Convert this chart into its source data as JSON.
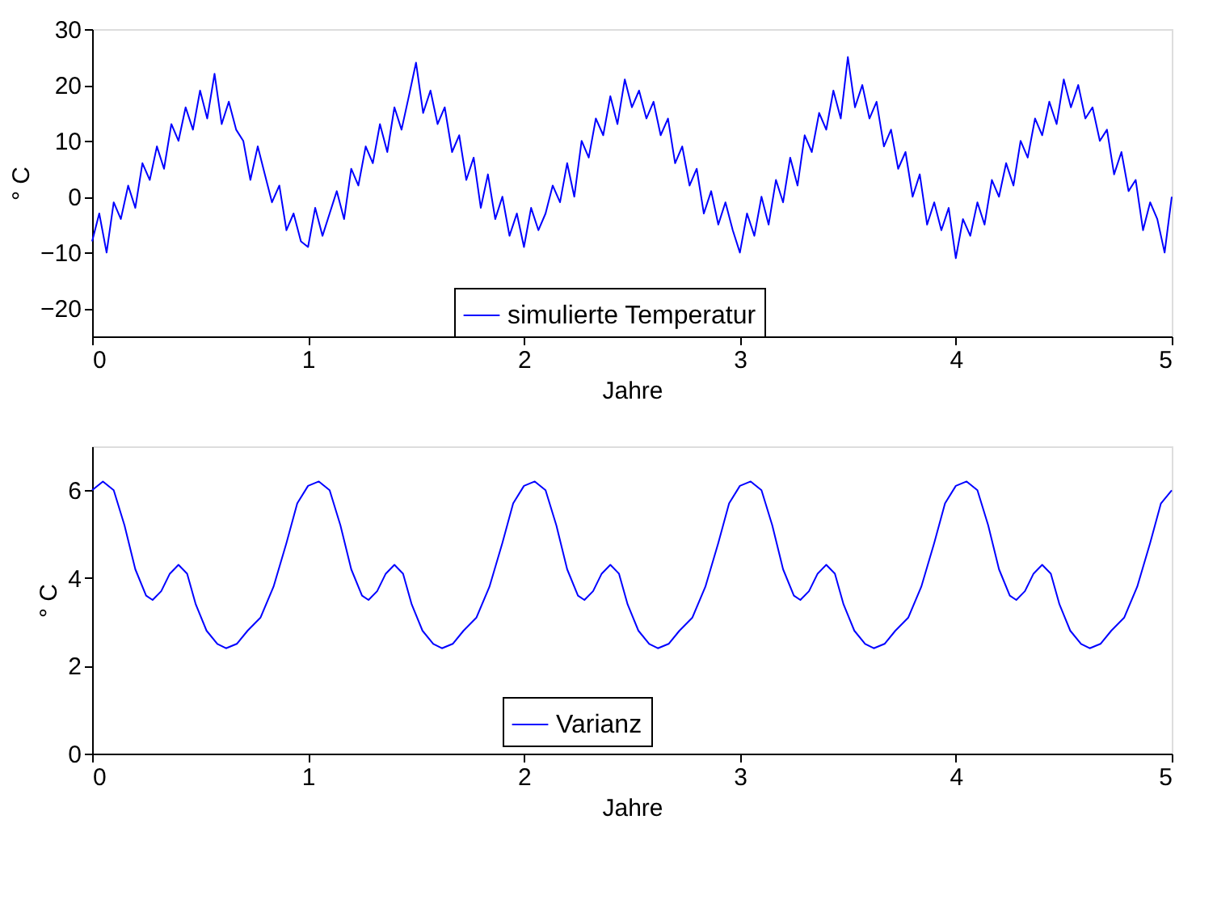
{
  "chart_data": [
    {
      "type": "line",
      "xlabel": "Jahre",
      "ylabel": "° C",
      "xlim": [
        0,
        5
      ],
      "xticks": [
        0,
        1,
        2,
        3,
        4,
        5
      ],
      "ylim": [
        -25,
        30
      ],
      "yticks": [
        -20,
        -10,
        0,
        10,
        20,
        30
      ],
      "grid": false,
      "legend": "bottom",
      "x": [
        0,
        0.033,
        0.067,
        0.1,
        0.133,
        0.167,
        0.2,
        0.233,
        0.267,
        0.3,
        0.333,
        0.367,
        0.4,
        0.433,
        0.467,
        0.5,
        0.533,
        0.567,
        0.6,
        0.633,
        0.667,
        0.7,
        0.733,
        0.767,
        0.8,
        0.833,
        0.867,
        0.9,
        0.933,
        0.967,
        1,
        1.033,
        1.067,
        1.1,
        1.133,
        1.167,
        1.2,
        1.233,
        1.267,
        1.3,
        1.333,
        1.367,
        1.4,
        1.433,
        1.467,
        1.5,
        1.533,
        1.567,
        1.6,
        1.633,
        1.667,
        1.7,
        1.733,
        1.767,
        1.8,
        1.833,
        1.867,
        1.9,
        1.933,
        1.967,
        2,
        2.033,
        2.067,
        2.1,
        2.133,
        2.167,
        2.2,
        2.233,
        2.267,
        2.3,
        2.333,
        2.367,
        2.4,
        2.433,
        2.467,
        2.5,
        2.533,
        2.567,
        2.6,
        2.633,
        2.667,
        2.7,
        2.733,
        2.767,
        2.8,
        2.833,
        2.867,
        2.9,
        2.933,
        2.967,
        3,
        3.033,
        3.067,
        3.1,
        3.133,
        3.167,
        3.2,
        3.233,
        3.267,
        3.3,
        3.333,
        3.367,
        3.4,
        3.433,
        3.467,
        3.5,
        3.533,
        3.567,
        3.6,
        3.633,
        3.667,
        3.7,
        3.733,
        3.767,
        3.8,
        3.833,
        3.867,
        3.9,
        3.933,
        3.967,
        4,
        4.033,
        4.067,
        4.1,
        4.133,
        4.167,
        4.2,
        4.233,
        4.267,
        4.3,
        4.333,
        4.367,
        4.4,
        4.433,
        4.467,
        4.5,
        4.533,
        4.567,
        4.6,
        4.633,
        4.667,
        4.7,
        4.733,
        4.767,
        4.8,
        4.833,
        4.867,
        4.9,
        4.933,
        4.967,
        5
      ],
      "series": [
        {
          "name": "simulierte Temperatur",
          "color": "#0000ff",
          "values": [
            -8,
            -3,
            -10,
            -1,
            -4,
            2,
            -2,
            6,
            3,
            9,
            5,
            13,
            10,
            16,
            12,
            19,
            14,
            22,
            13,
            17,
            12,
            10,
            3,
            9,
            4,
            -1,
            2,
            -6,
            -3,
            -8,
            -9,
            -2,
            -7,
            -3,
            1,
            -4,
            5,
            2,
            9,
            6,
            13,
            8,
            16,
            12,
            18,
            24,
            15,
            19,
            13,
            16,
            8,
            11,
            3,
            7,
            -2,
            4,
            -4,
            0,
            -7,
            -3,
            -9,
            -2,
            -6,
            -3,
            2,
            -1,
            6,
            0,
            10,
            7,
            14,
            11,
            18,
            13,
            21,
            16,
            19,
            14,
            17,
            11,
            14,
            6,
            9,
            2,
            5,
            -3,
            1,
            -5,
            -1,
            -6,
            -10,
            -3,
            -7,
            0,
            -5,
            3,
            -1,
            7,
            2,
            11,
            8,
            15,
            12,
            19,
            14,
            25,
            16,
            20,
            14,
            17,
            9,
            12,
            5,
            8,
            0,
            4,
            -5,
            -1,
            -6,
            -2,
            -11,
            -4,
            -7,
            -1,
            -5,
            3,
            0,
            6,
            2,
            10,
            7,
            14,
            11,
            17,
            13,
            21,
            16,
            20,
            14,
            16,
            10,
            12,
            4,
            8,
            1,
            3,
            -6,
            -1,
            -4,
            -10,
            0
          ]
        }
      ]
    },
    {
      "type": "line",
      "xlabel": "Jahre",
      "ylabel": "° C",
      "xlim": [
        0,
        5
      ],
      "xticks": [
        0,
        1,
        2,
        3,
        4,
        5
      ],
      "ylim": [
        0,
        7
      ],
      "yticks": [
        0,
        2,
        4,
        6
      ],
      "grid": false,
      "legend": "bottom",
      "x": [
        0,
        0.05,
        0.1,
        0.15,
        0.2,
        0.25,
        0.28,
        0.32,
        0.36,
        0.4,
        0.44,
        0.48,
        0.53,
        0.58,
        0.62,
        0.67,
        0.72,
        0.78,
        0.84,
        0.9,
        0.95,
        1,
        1.05,
        1.1,
        1.15,
        1.2,
        1.25,
        1.28,
        1.32,
        1.36,
        1.4,
        1.44,
        1.48,
        1.53,
        1.58,
        1.62,
        1.67,
        1.72,
        1.78,
        1.84,
        1.9,
        1.95,
        2,
        2.05,
        2.1,
        2.15,
        2.2,
        2.25,
        2.28,
        2.32,
        2.36,
        2.4,
        2.44,
        2.48,
        2.53,
        2.58,
        2.62,
        2.67,
        2.72,
        2.78,
        2.84,
        2.9,
        2.95,
        3,
        3.05,
        3.1,
        3.15,
        3.2,
        3.25,
        3.28,
        3.32,
        3.36,
        3.4,
        3.44,
        3.48,
        3.53,
        3.58,
        3.62,
        3.67,
        3.72,
        3.78,
        3.84,
        3.9,
        3.95,
        4,
        4.05,
        4.1,
        4.15,
        4.2,
        4.25,
        4.28,
        4.32,
        4.36,
        4.4,
        4.44,
        4.48,
        4.53,
        4.58,
        4.62,
        4.67,
        4.72,
        4.78,
        4.84,
        4.9,
        4.95,
        5
      ],
      "series": [
        {
          "name": "Varianz",
          "color": "#0000ff",
          "values": [
            6.0,
            6.2,
            6.0,
            5.2,
            4.2,
            3.6,
            3.5,
            3.7,
            4.1,
            4.3,
            4.1,
            3.4,
            2.8,
            2.5,
            2.4,
            2.5,
            2.8,
            3.1,
            3.8,
            4.8,
            5.7,
            6.1,
            6.2,
            6.0,
            5.2,
            4.2,
            3.6,
            3.5,
            3.7,
            4.1,
            4.3,
            4.1,
            3.4,
            2.8,
            2.5,
            2.4,
            2.5,
            2.8,
            3.1,
            3.8,
            4.8,
            5.7,
            6.1,
            6.2,
            6.0,
            5.2,
            4.2,
            3.6,
            3.5,
            3.7,
            4.1,
            4.3,
            4.1,
            3.4,
            2.8,
            2.5,
            2.4,
            2.5,
            2.8,
            3.1,
            3.8,
            4.8,
            5.7,
            6.1,
            6.2,
            6.0,
            5.2,
            4.2,
            3.6,
            3.5,
            3.7,
            4.1,
            4.3,
            4.1,
            3.4,
            2.8,
            2.5,
            2.4,
            2.5,
            2.8,
            3.1,
            3.8,
            4.8,
            5.7,
            6.1,
            6.2,
            6.0,
            5.2,
            4.2,
            3.6,
            3.5,
            3.7,
            4.1,
            4.3,
            4.1,
            3.4,
            2.8,
            2.5,
            2.4,
            2.5,
            2.8,
            3.1,
            3.8,
            4.8,
            5.7,
            6.0
          ]
        }
      ]
    }
  ]
}
